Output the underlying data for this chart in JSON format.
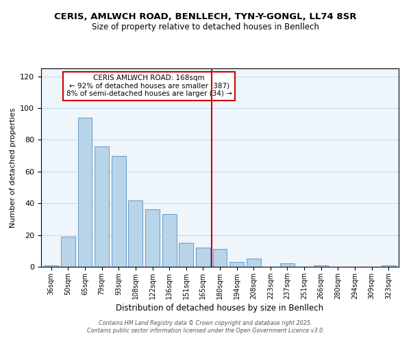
{
  "title": "CERIS, AMLWCH ROAD, BENLLECH, TYN-Y-GONGL, LL74 8SR",
  "subtitle": "Size of property relative to detached houses in Benllech",
  "xlabel": "Distribution of detached houses by size in Benllech",
  "ylabel": "Number of detached properties",
  "bar_labels": [
    "36sqm",
    "50sqm",
    "65sqm",
    "79sqm",
    "93sqm",
    "108sqm",
    "122sqm",
    "136sqm",
    "151sqm",
    "165sqm",
    "180sqm",
    "194sqm",
    "208sqm",
    "223sqm",
    "237sqm",
    "251sqm",
    "266sqm",
    "280sqm",
    "294sqm",
    "309sqm",
    "323sqm"
  ],
  "bar_values": [
    1,
    19,
    94,
    76,
    70,
    42,
    36,
    33,
    15,
    12,
    11,
    3,
    5,
    0,
    2,
    0,
    1,
    0,
    0,
    0,
    1
  ],
  "bar_color": "#b8d4e8",
  "bar_edge_color": "#6699cc",
  "ylim": [
    0,
    125
  ],
  "yticks": [
    0,
    20,
    40,
    60,
    80,
    100,
    120
  ],
  "vline_x_index": 9.5,
  "vline_color": "#cc0000",
  "annotation_title": "CERIS AMLWCH ROAD: 168sqm",
  "annotation_line1": "← 92% of detached houses are smaller (387)",
  "annotation_line2": "8% of semi-detached houses are larger (34) →",
  "annotation_box_color": "#ffffff",
  "annotation_box_edge_color": "#cc0000",
  "footer1": "Contains HM Land Registry data © Crown copyright and database right 2025.",
  "footer2": "Contains public sector information licensed under the Open Government Licence v3.0."
}
